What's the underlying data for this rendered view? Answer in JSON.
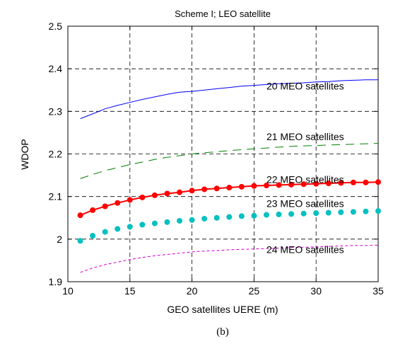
{
  "caption": "(b)",
  "chart_data": {
    "type": "line",
    "title": "Scheme I; LEO satellite",
    "xlabel": "GEO satellites UERE (m)",
    "ylabel": "WDOP",
    "xlim": [
      10,
      35
    ],
    "ylim": [
      1.9,
      2.5
    ],
    "xticks": [
      10,
      15,
      20,
      25,
      30,
      35
    ],
    "yticks": [
      1.9,
      2,
      2.1,
      2.2,
      2.3,
      2.4,
      2.5
    ],
    "grid": true,
    "x": [
      11,
      12,
      13,
      14,
      15,
      16,
      17,
      18,
      19,
      20,
      21,
      22,
      23,
      24,
      25,
      26,
      27,
      28,
      29,
      30,
      31,
      32,
      33,
      34,
      35
    ],
    "series": [
      {
        "name": "20 MEO satellites",
        "color": "#0000ff",
        "style": "solid",
        "label_at": [
          26,
          2.351
        ],
        "values": [
          2.283,
          2.294,
          2.306,
          2.314,
          2.321,
          2.328,
          2.334,
          2.34,
          2.345,
          2.347,
          2.35,
          2.353,
          2.356,
          2.359,
          2.361,
          2.363,
          2.365,
          2.366,
          2.367,
          2.369,
          2.37,
          2.372,
          2.373,
          2.374,
          2.374
        ]
      },
      {
        "name": "21 MEO satellites",
        "color": "#008000",
        "style": "dash",
        "label_at": [
          26,
          2.232
        ],
        "values": [
          2.142,
          2.152,
          2.161,
          2.168,
          2.175,
          2.181,
          2.187,
          2.192,
          2.196,
          2.2,
          2.203,
          2.205,
          2.208,
          2.21,
          2.212,
          2.214,
          2.216,
          2.218,
          2.219,
          2.22,
          2.221,
          2.222,
          2.223,
          2.224,
          2.225
        ]
      },
      {
        "name": "22 MEO satellites",
        "color": "#ff0000",
        "style": "solid-dots",
        "label_at": [
          26,
          2.132
        ],
        "values": [
          2.056,
          2.068,
          2.077,
          2.085,
          2.092,
          2.098,
          2.103,
          2.107,
          2.11,
          2.114,
          2.117,
          2.119,
          2.121,
          2.123,
          2.125,
          2.126,
          2.127,
          2.128,
          2.129,
          2.13,
          2.131,
          2.132,
          2.133,
          2.133,
          2.134
        ]
      },
      {
        "name": "23 MEO satellites",
        "color": "#00c0c0",
        "style": "dots",
        "label_at": [
          26,
          2.075
        ],
        "values": [
          1.996,
          2.008,
          2.017,
          2.024,
          2.029,
          2.034,
          2.037,
          2.04,
          2.043,
          2.045,
          2.048,
          2.05,
          2.052,
          2.054,
          2.055,
          2.057,
          2.058,
          2.059,
          2.06,
          2.061,
          2.062,
          2.063,
          2.064,
          2.065,
          2.066
        ]
      },
      {
        "name": "24 MEO satellites",
        "color": "#d000d0",
        "style": "dash-fine",
        "label_at": [
          26,
          1.967
        ],
        "values": [
          1.922,
          1.932,
          1.94,
          1.946,
          1.952,
          1.957,
          1.961,
          1.964,
          1.967,
          1.97,
          1.972,
          1.973,
          1.975,
          1.976,
          1.977,
          1.978,
          1.979,
          1.98,
          1.981,
          1.982,
          1.983,
          1.984,
          1.985,
          1.985,
          1.986
        ]
      }
    ]
  }
}
